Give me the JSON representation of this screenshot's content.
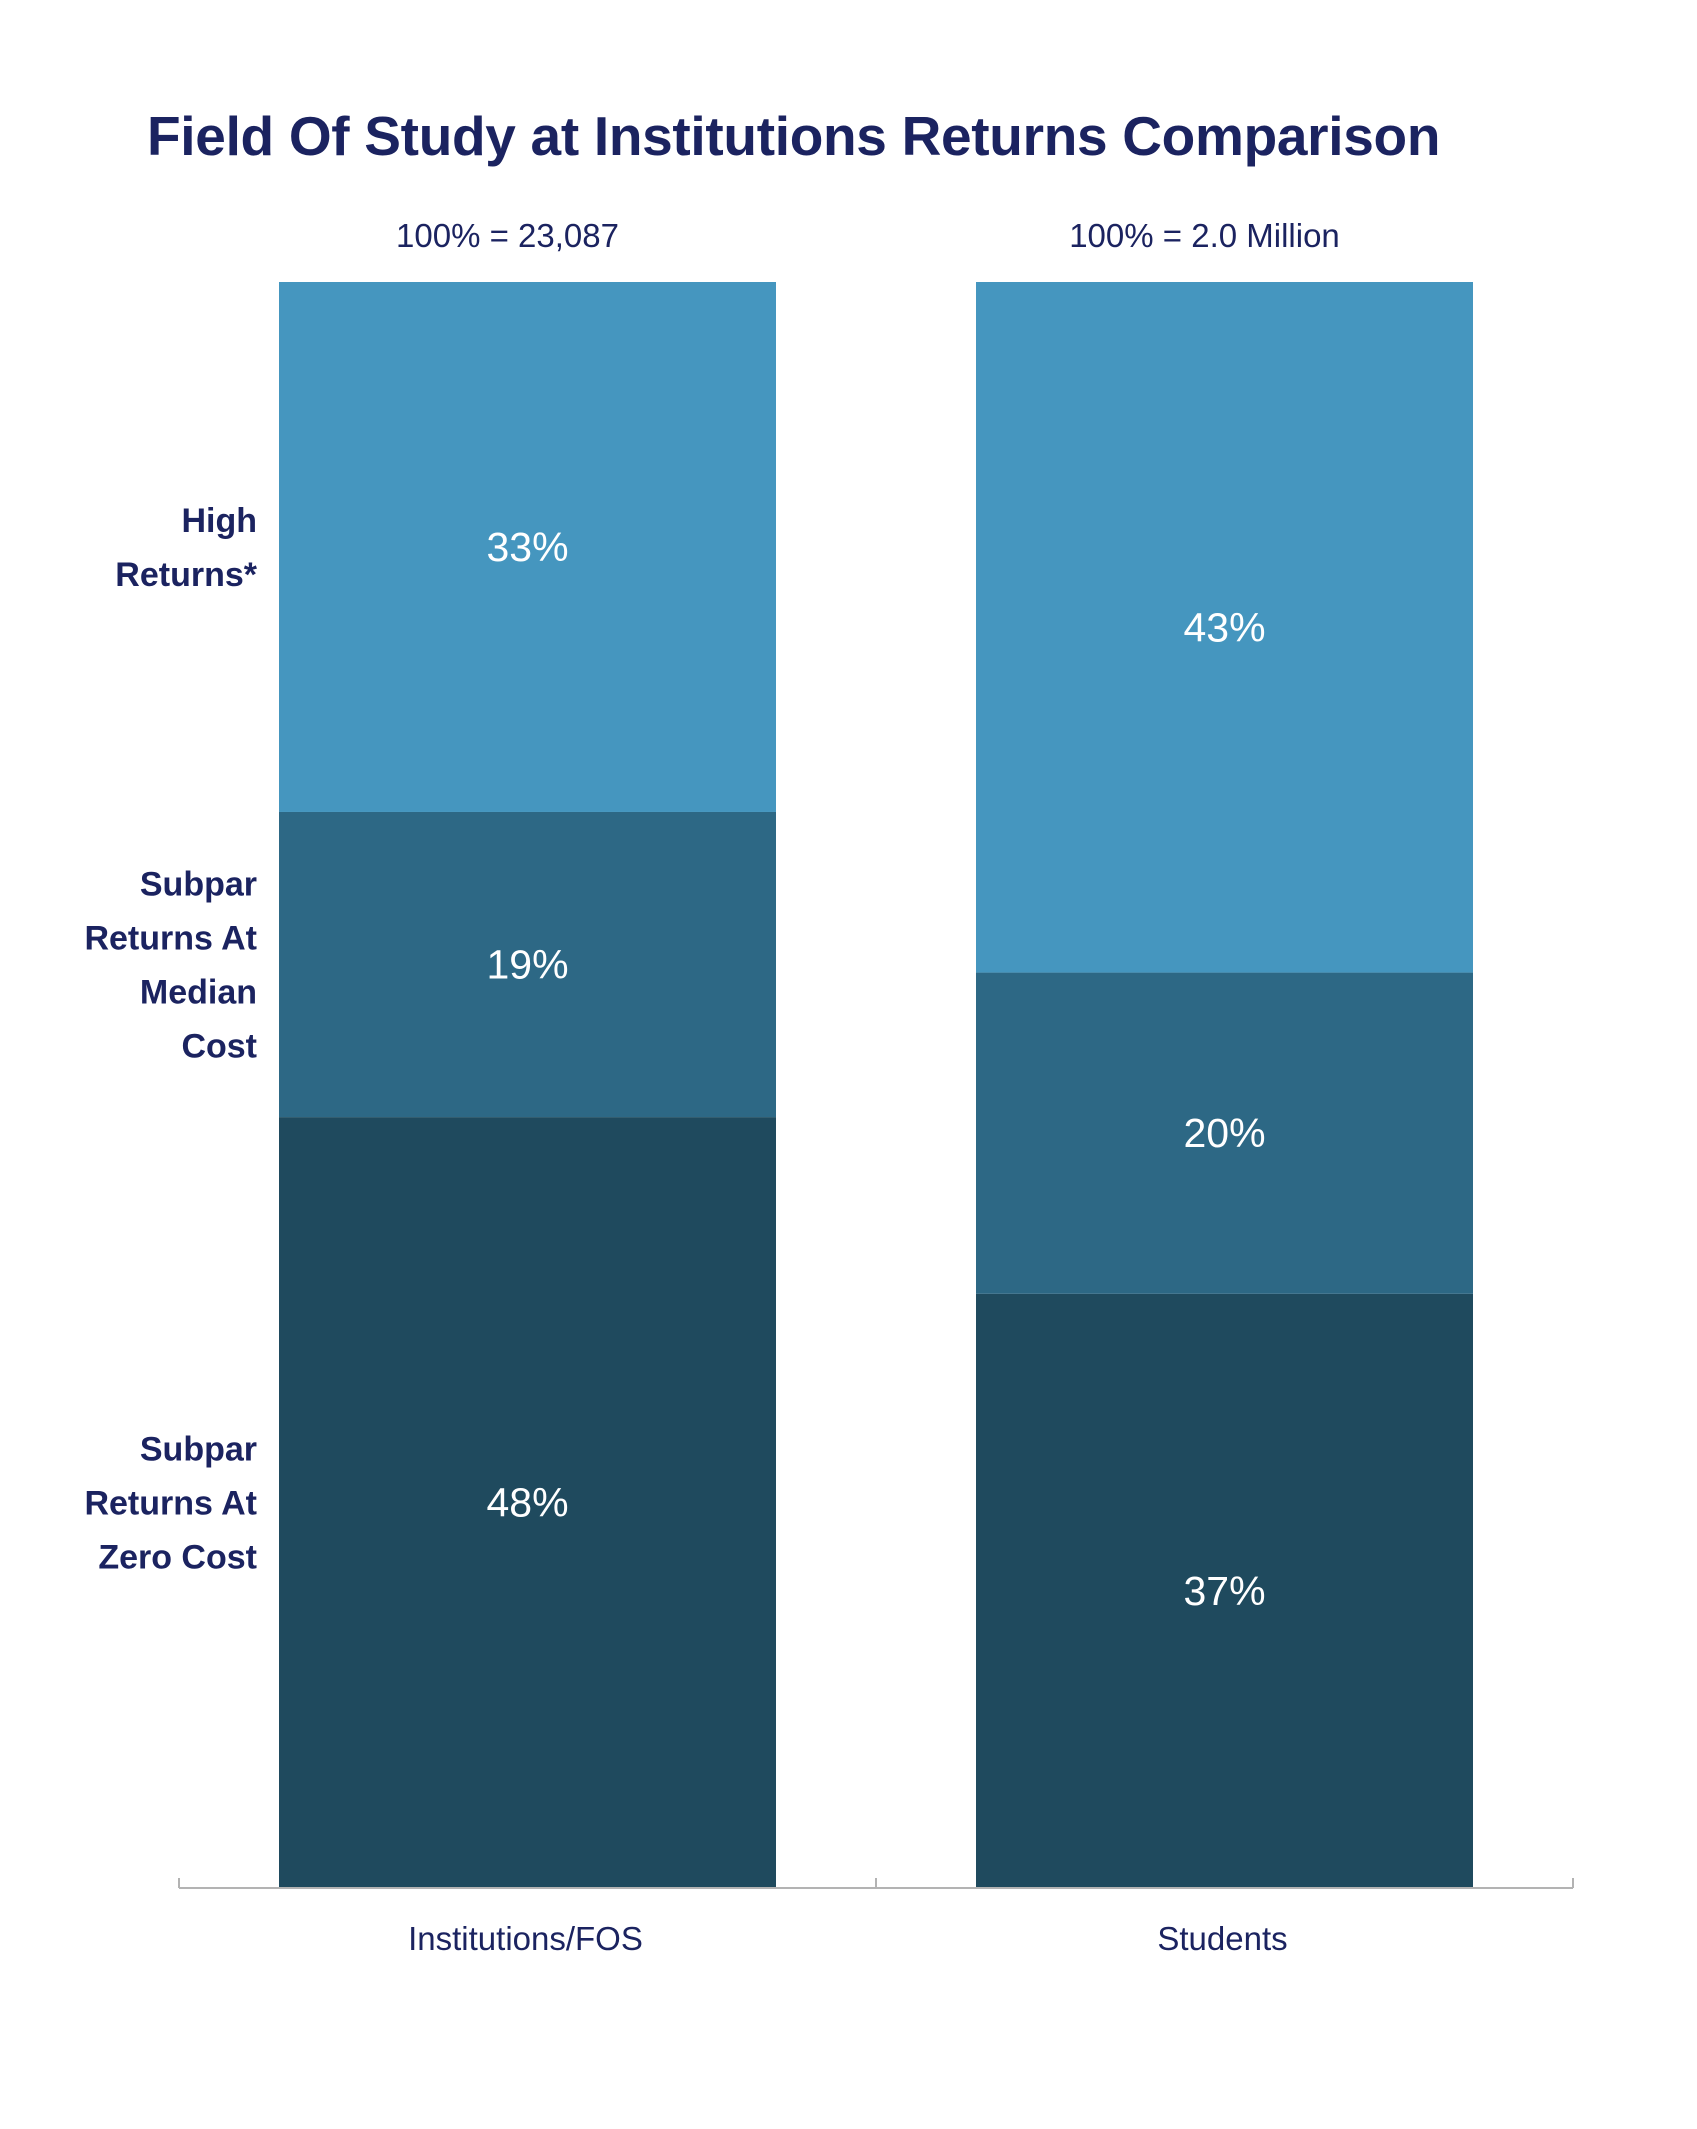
{
  "title": "Field Of Study at Institutions Returns Comparison",
  "colors": {
    "title": "#1b2360",
    "axis": "#b3b3b3",
    "segment_label": "#ffffff",
    "High Returns*": "#4596bf",
    "Subpar Returns At Median Cost": "#2d6885",
    "Subpar Returns At Zero Cost": "#1f4a5e"
  },
  "chart_data": {
    "type": "bar",
    "stacked": true,
    "orientation": "vertical",
    "unit": "%",
    "title": "Field Of Study at Institutions Returns Comparison",
    "categories": [
      "Institutions/FOS",
      "Students"
    ],
    "totals": [
      "100% = 23,087",
      "100% = 2.0 Million"
    ],
    "series": [
      {
        "name": "Subpar Returns At Zero Cost",
        "label_lines": [
          "Subpar",
          "Returns At",
          "Zero Cost"
        ],
        "values": [
          48,
          37
        ],
        "labels": [
          "48%",
          "37%"
        ]
      },
      {
        "name": "Subpar Returns At Median Cost",
        "label_lines": [
          "Subpar",
          "Returns  At",
          "Median",
          "Cost"
        ],
        "values": [
          19,
          20
        ],
        "labels": [
          "19%",
          "20%"
        ]
      },
      {
        "name": "High Returns*",
        "label_lines": [
          "High",
          "Returns*"
        ],
        "values": [
          33,
          43
        ],
        "labels": [
          "33%",
          "43%"
        ]
      }
    ],
    "ylim": [
      0,
      100
    ],
    "legend": "row labels left of first bar",
    "grid": false
  }
}
